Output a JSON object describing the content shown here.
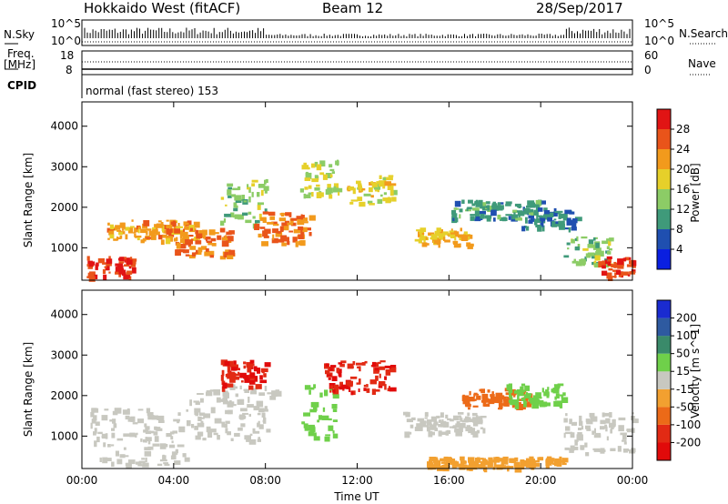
{
  "header": {
    "title": "Hokkaido West (fitACF)",
    "beam": "Beam 12",
    "date": "28/Sep/2017"
  },
  "summary": {
    "nsky_label": "N.Sky",
    "nsky_top": "10^5",
    "nsky_bottom": "10^0",
    "nsky_right_top": "10^5",
    "nsky_right_bottom": "10^0",
    "nsearch_label": "N.Search",
    "freq_label": "Freq.",
    "freq_unit": "[MHz]",
    "freq_top": "18",
    "freq_bottom": "8",
    "nave_top": "60",
    "nave_bottom": "0",
    "nave_label": "Nave",
    "cpid_label": "CPID",
    "cpid_value": "normal (fast stereo) 153"
  },
  "panels": {
    "power_ylabel": "Slant Range [km]",
    "velocity_ylabel": "Slant Range [km]",
    "power_cbar_label": "Power [dB]",
    "velocity_cbar_label": "Velocity [m s^-1]",
    "xlabel": "Time UT"
  },
  "chart_data": [
    {
      "type": "heatmap",
      "name": "power",
      "x_ticks": [
        "00:00",
        "04:00",
        "08:00",
        "12:00",
        "16:00",
        "20:00",
        "00:00"
      ],
      "y_ticks": [
        1000,
        2000,
        3000,
        4000
      ],
      "xlim": [
        0,
        24
      ],
      "ylim": [
        200,
        4600
      ],
      "colorbar_ticks": [
        4,
        8,
        12,
        16,
        20,
        24,
        28
      ],
      "colorbar_colors": [
        "#0a1fe0",
        "#1f4fb0",
        "#3f9a7a",
        "#8ccc66",
        "#e6d02a",
        "#f29a1c",
        "#e9541a",
        "#e11414"
      ],
      "features": [
        {
          "t0": 0.2,
          "t1": 2.2,
          "r0": 300,
          "r1": 800,
          "v": 28
        },
        {
          "t0": 1.0,
          "t1": 5.0,
          "r0": 1200,
          "r1": 1700,
          "v": 22
        },
        {
          "t0": 4.0,
          "t1": 6.5,
          "r0": 800,
          "r1": 1500,
          "v": 24
        },
        {
          "t0": 6.0,
          "t1": 8.0,
          "r0": 1600,
          "r1": 2700,
          "v": 14
        },
        {
          "t0": 7.5,
          "t1": 10.0,
          "r0": 1100,
          "r1": 1900,
          "v": 24
        },
        {
          "t0": 9.5,
          "t1": 11.2,
          "r0": 2300,
          "r1": 3200,
          "v": 16
        },
        {
          "t0": 11.5,
          "t1": 13.5,
          "r0": 2100,
          "r1": 2800,
          "v": 18
        },
        {
          "t0": 14.5,
          "t1": 17.0,
          "r0": 1100,
          "r1": 1500,
          "v": 20
        },
        {
          "t0": 16.0,
          "t1": 20.0,
          "r0": 1700,
          "r1": 2200,
          "v": 10
        },
        {
          "t0": 19.0,
          "t1": 21.5,
          "r0": 1500,
          "r1": 2000,
          "v": 8
        },
        {
          "t0": 21.0,
          "t1": 23.0,
          "r0": 600,
          "r1": 1300,
          "v": 14
        },
        {
          "t0": 22.5,
          "t1": 24.0,
          "r0": 300,
          "r1": 800,
          "v": 28
        }
      ]
    },
    {
      "type": "heatmap",
      "name": "velocity",
      "x_ticks": [
        "00:00",
        "04:00",
        "08:00",
        "12:00",
        "16:00",
        "20:00",
        "00:00"
      ],
      "y_ticks": [
        1000,
        2000,
        3000,
        4000
      ],
      "xlim": [
        0,
        24
      ],
      "ylim": [
        200,
        4600
      ],
      "colorbar_ticks": [
        200,
        100,
        50,
        15,
        -15,
        -50,
        -100,
        -200
      ],
      "colorbar_colors": [
        "#1a2bd0",
        "#2e5aa0",
        "#3a8a6a",
        "#6fd04a",
        "#c8c8c0",
        "#f2a030",
        "#ec6a18",
        "#e22a14",
        "#e10a0a"
      ],
      "features": [
        {
          "t0": 0.3,
          "t1": 4.5,
          "r0": 300,
          "r1": 1700,
          "v": 0
        },
        {
          "t0": 4.5,
          "t1": 8.5,
          "r0": 900,
          "r1": 2300,
          "v": 0
        },
        {
          "t0": 6.0,
          "t1": 8.0,
          "r0": 2200,
          "r1": 2900,
          "v": -200
        },
        {
          "t0": 9.5,
          "t1": 11.0,
          "r0": 900,
          "r1": 2300,
          "v": 40
        },
        {
          "t0": 10.5,
          "t1": 13.5,
          "r0": 2100,
          "r1": 2900,
          "v": -200
        },
        {
          "t0": 14.0,
          "t1": 17.5,
          "r0": 1100,
          "r1": 1600,
          "v": 0
        },
        {
          "t0": 16.5,
          "t1": 19.5,
          "r0": 1700,
          "r1": 2200,
          "v": -60
        },
        {
          "t0": 18.5,
          "t1": 21.0,
          "r0": 1800,
          "r1": 2300,
          "v": 40
        },
        {
          "t0": 21.0,
          "t1": 24.0,
          "r0": 600,
          "r1": 1600,
          "v": 0
        },
        {
          "t0": 15.0,
          "t1": 21.0,
          "r0": 250,
          "r1": 500,
          "v": -40
        }
      ]
    }
  ]
}
